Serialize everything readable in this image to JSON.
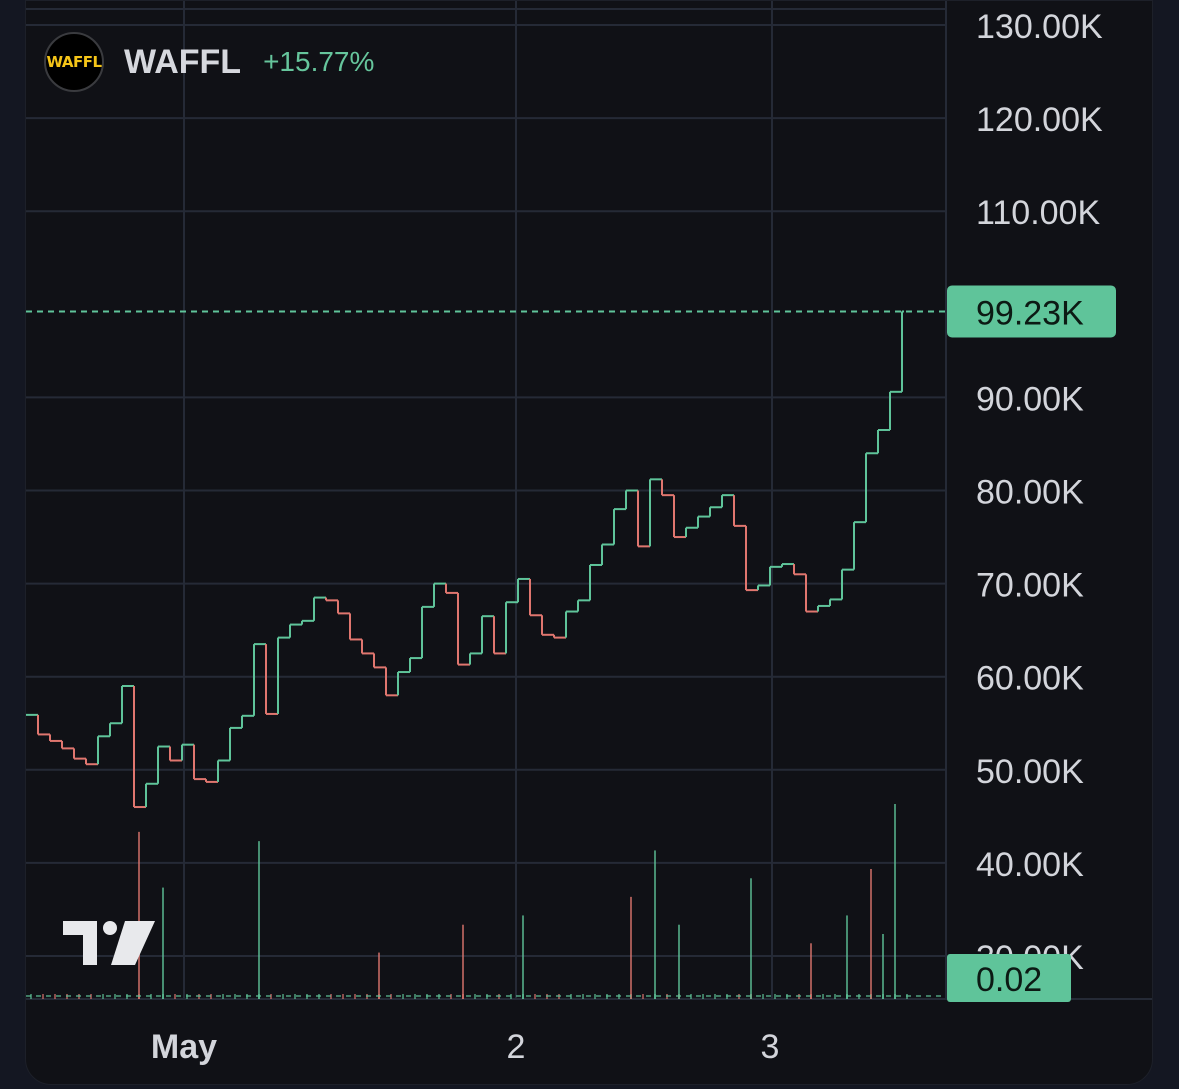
{
  "legend": {
    "logo_text": "WAFFL",
    "symbol": "WAFFL",
    "change": "+15.77%"
  },
  "colors": {
    "up": "#5fc49a",
    "down": "#e0766f",
    "grid": "#252a36",
    "axis_text": "#d3d5db",
    "background": "#101116",
    "page_background": "#141722",
    "price_label_bg": "#5fc49a",
    "price_label_text": "#0c1a14"
  },
  "chart_data": {
    "type": "line",
    "style": "step",
    "title": "",
    "ylim": [
      25000,
      133000
    ],
    "y_ticks": [
      {
        "value": 130000,
        "label": "130.00K"
      },
      {
        "value": 120000,
        "label": "120.00K"
      },
      {
        "value": 110000,
        "label": "110.00K"
      },
      {
        "value": 90000,
        "label": "90.00K"
      },
      {
        "value": 80000,
        "label": "80.00K"
      },
      {
        "value": 70000,
        "label": "70.00K"
      },
      {
        "value": 60000,
        "label": "60.00K"
      },
      {
        "value": 50000,
        "label": "50.00K"
      },
      {
        "value": 40000,
        "label": "40.00K"
      },
      {
        "value": 30000,
        "label": "30.00K"
      }
    ],
    "x_ticks": [
      "May",
      "2",
      "3"
    ],
    "last_price": {
      "value": 99230,
      "label": "99.23K"
    },
    "volume_label": "0.02",
    "price_series": [
      {
        "x": "Apr 30 19:00",
        "y": 55900
      },
      {
        "x": "Apr 30 19:20",
        "y": 53800
      },
      {
        "x": "Apr 30 19:40",
        "y": 53100
      },
      {
        "x": "Apr 30 20:00",
        "y": 52300
      },
      {
        "x": "Apr 30 20:20",
        "y": 51200
      },
      {
        "x": "Apr 30 20:40",
        "y": 50600
      },
      {
        "x": "Apr 30 21:00",
        "y": 53600
      },
      {
        "x": "Apr 30 21:20",
        "y": 55000
      },
      {
        "x": "Apr 30 21:40",
        "y": 59000
      },
      {
        "x": "Apr 30 22:00",
        "y": 46000
      },
      {
        "x": "Apr 30 22:20",
        "y": 48500
      },
      {
        "x": "Apr 30 22:40",
        "y": 52500
      },
      {
        "x": "Apr 30 23:00",
        "y": 51000
      },
      {
        "x": "Apr 30 23:20",
        "y": 52700
      },
      {
        "x": "Apr 30 23:40",
        "y": 49000
      },
      {
        "x": "May 1 00:00",
        "y": 48700
      },
      {
        "x": "May 1 00:20",
        "y": 51000
      },
      {
        "x": "May 1 00:40",
        "y": 54500
      },
      {
        "x": "May 1 01:00",
        "y": 55800
      },
      {
        "x": "May 1 01:20",
        "y": 63500
      },
      {
        "x": "May 1 01:40",
        "y": 56000
      },
      {
        "x": "May 1 02:00",
        "y": 64200
      },
      {
        "x": "May 1 02:20",
        "y": 65600
      },
      {
        "x": "May 1 02:40",
        "y": 66000
      },
      {
        "x": "May 1 03:00",
        "y": 68500
      },
      {
        "x": "May 1 03:20",
        "y": 68200
      },
      {
        "x": "May 1 03:40",
        "y": 66800
      },
      {
        "x": "May 1 04:00",
        "y": 64000
      },
      {
        "x": "May 1 04:20",
        "y": 62500
      },
      {
        "x": "May 1 04:40",
        "y": 61000
      },
      {
        "x": "May 1 05:00",
        "y": 58000
      },
      {
        "x": "May 1 05:20",
        "y": 60500
      },
      {
        "x": "May 1 05:40",
        "y": 62000
      },
      {
        "x": "May 1 06:00",
        "y": 67500
      },
      {
        "x": "May 1 06:20",
        "y": 70000
      },
      {
        "x": "May 1 06:40",
        "y": 69000
      },
      {
        "x": "May 1 07:00",
        "y": 61300
      },
      {
        "x": "May 1 07:20",
        "y": 62500
      },
      {
        "x": "May 1 07:40",
        "y": 66500
      },
      {
        "x": "May 1 08:00",
        "y": 62500
      },
      {
        "x": "May 1 08:20",
        "y": 68000
      },
      {
        "x": "May 1 08:40",
        "y": 70500
      },
      {
        "x": "May 1 09:00",
        "y": 66600
      },
      {
        "x": "May 1 09:20",
        "y": 64500
      },
      {
        "x": "May 1 09:40",
        "y": 64200
      },
      {
        "x": "May 1 10:00",
        "y": 67000
      },
      {
        "x": "May 1 10:20",
        "y": 68200
      },
      {
        "x": "May 1 10:40",
        "y": 72000
      },
      {
        "x": "May 1 11:00",
        "y": 74200
      },
      {
        "x": "May 1 11:20",
        "y": 78000
      },
      {
        "x": "May 1 11:40",
        "y": 80000
      },
      {
        "x": "May 1 12:00",
        "y": 74000
      },
      {
        "x": "May 1 12:20",
        "y": 81200
      },
      {
        "x": "May 1 12:40",
        "y": 79500
      },
      {
        "x": "May 1 13:00",
        "y": 75000
      },
      {
        "x": "May 1 13:20",
        "y": 76000
      },
      {
        "x": "May 1 13:40",
        "y": 77200
      },
      {
        "x": "May 1 14:00",
        "y": 78200
      },
      {
        "x": "May 1 14:20",
        "y": 79500
      },
      {
        "x": "May 1 14:40",
        "y": 76200
      },
      {
        "x": "May 1 15:00",
        "y": 69300
      },
      {
        "x": "May 1 15:20",
        "y": 69800
      },
      {
        "x": "May 1 15:40",
        "y": 71800
      },
      {
        "x": "May 1 16:00",
        "y": 72100
      },
      {
        "x": "May 1 16:20",
        "y": 71000
      },
      {
        "x": "May 1 16:40",
        "y": 67000
      },
      {
        "x": "May 1 17:00",
        "y": 67600
      },
      {
        "x": "May 1 17:20",
        "y": 68300
      },
      {
        "x": "May 1 17:40",
        "y": 71500
      },
      {
        "x": "May 1 18:00",
        "y": 76600
      },
      {
        "x": "May 1 18:20",
        "y": 84000
      },
      {
        "x": "May 1 18:40",
        "y": 86500
      },
      {
        "x": "May 1 19:00",
        "y": 90600
      },
      {
        "x": "May 1 19:20",
        "y": 99230
      }
    ],
    "volume_series": [
      {
        "x": "Apr 30 22:00",
        "y": 0.18,
        "dir": "down"
      },
      {
        "x": "Apr 30 22:40",
        "y": 0.12,
        "dir": "up"
      },
      {
        "x": "May 1 01:20",
        "y": 0.17,
        "dir": "up"
      },
      {
        "x": "May 1 04:40",
        "y": 0.05,
        "dir": "down"
      },
      {
        "x": "May 1 07:00",
        "y": 0.08,
        "dir": "down"
      },
      {
        "x": "May 1 08:40",
        "y": 0.09,
        "dir": "up"
      },
      {
        "x": "May 1 11:40",
        "y": 0.11,
        "dir": "down"
      },
      {
        "x": "May 1 12:20",
        "y": 0.16,
        "dir": "up"
      },
      {
        "x": "May 1 13:00",
        "y": 0.08,
        "dir": "up"
      },
      {
        "x": "May 1 15:00",
        "y": 0.13,
        "dir": "up"
      },
      {
        "x": "May 1 16:40",
        "y": 0.06,
        "dir": "down"
      },
      {
        "x": "May 1 17:40",
        "y": 0.09,
        "dir": "up"
      },
      {
        "x": "May 1 18:20",
        "y": 0.14,
        "dir": "down"
      },
      {
        "x": "May 1 18:40",
        "y": 0.07,
        "dir": "up"
      },
      {
        "x": "May 1 19:00",
        "y": 0.21,
        "dir": "up"
      }
    ]
  }
}
